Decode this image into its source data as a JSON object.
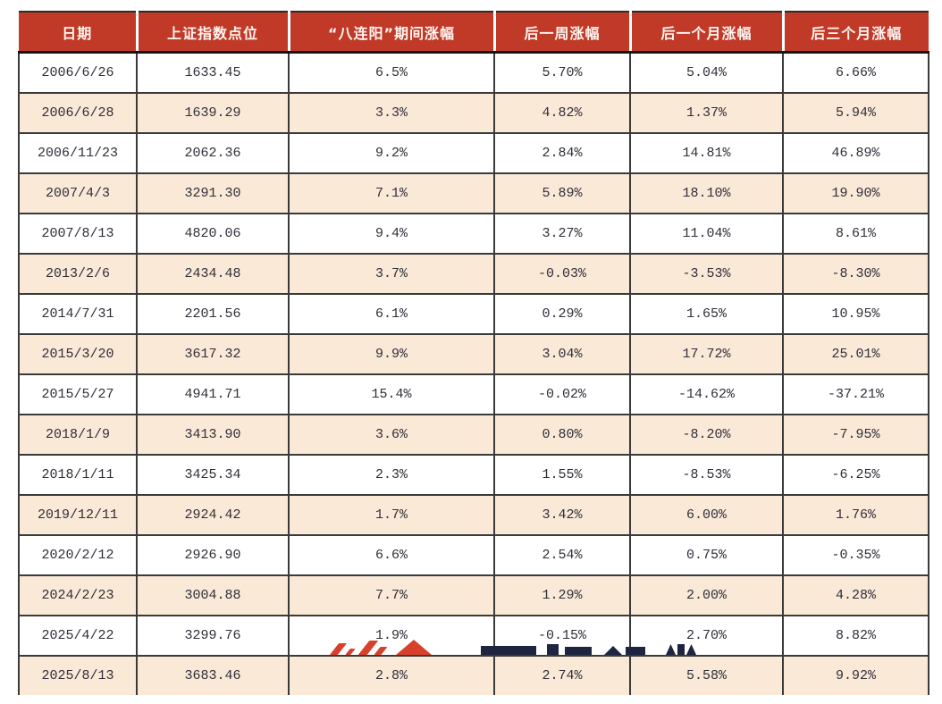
{
  "colors": {
    "header_bg": "#C13A28",
    "header_text": "#FFF6F2",
    "row_alt_bg": "#FBE9D8",
    "row_bg": "#FFFFFF",
    "grid": "#3A3A3A",
    "cell_text": "#2E2E38",
    "watermark_red": "#D8402C",
    "watermark_navy": "#1E2540"
  },
  "table": {
    "columns": [
      "日期",
      "上证指数点位",
      "“八连阳”期间涨幅",
      "后一周涨幅",
      "后一个月涨幅",
      "后三个月涨幅"
    ],
    "rows": [
      [
        "2006/6/26",
        "1633.45",
        "6.5%",
        "5.70%",
        "5.04%",
        "6.66%"
      ],
      [
        "2006/6/28",
        "1639.29",
        "3.3%",
        "4.82%",
        "1.37%",
        "5.94%"
      ],
      [
        "2006/11/23",
        "2062.36",
        "9.2%",
        "2.84%",
        "14.81%",
        "46.89%"
      ],
      [
        "2007/4/3",
        "3291.30",
        "7.1%",
        "5.89%",
        "18.10%",
        "19.90%"
      ],
      [
        "2007/8/13",
        "4820.06",
        "9.4%",
        "3.27%",
        "11.04%",
        "8.61%"
      ],
      [
        "2013/2/6",
        "2434.48",
        "3.7%",
        "-0.03%",
        "-3.53%",
        "-8.30%"
      ],
      [
        "2014/7/31",
        "2201.56",
        "6.1%",
        "0.29%",
        "1.65%",
        "10.95%"
      ],
      [
        "2015/3/20",
        "3617.32",
        "9.9%",
        "3.04%",
        "17.72%",
        "25.01%"
      ],
      [
        "2015/5/27",
        "4941.71",
        "15.4%",
        "-0.02%",
        "-14.62%",
        "-37.21%"
      ],
      [
        "2018/1/9",
        "3413.90",
        "3.6%",
        "0.80%",
        "-8.20%",
        "-7.95%"
      ],
      [
        "2018/1/11",
        "3425.34",
        "2.3%",
        "1.55%",
        "-8.53%",
        "-6.25%"
      ],
      [
        "2019/12/11",
        "2924.42",
        "1.7%",
        "3.42%",
        "6.00%",
        "1.76%"
      ],
      [
        "2020/2/12",
        "2926.90",
        "6.6%",
        "2.54%",
        "0.75%",
        "-0.35%"
      ],
      [
        "2024/2/23",
        "3004.88",
        "7.7%",
        "1.29%",
        "2.00%",
        "4.28%"
      ],
      [
        "2025/4/22",
        "3299.76",
        "1.9%",
        "-0.15%",
        "2.70%",
        "8.82%"
      ],
      [
        "2025/8/13",
        "3683.46",
        "2.8%",
        "2.74%",
        "5.58%",
        "9.92%"
      ]
    ]
  },
  "chart_data": {
    "type": "table",
    "title": "",
    "columns": [
      "日期",
      "上证指数点位",
      "“八连阳”期间涨幅",
      "后一周涨幅",
      "后一个月涨幅",
      "后三个月涨幅"
    ],
    "rows": [
      {
        "date": "2006/6/26",
        "index_level": 1633.45,
        "streak_gain_pct": 6.5,
        "next_week_pct": 5.7,
        "next_month_pct": 5.04,
        "next_3m_pct": 6.66
      },
      {
        "date": "2006/6/28",
        "index_level": 1639.29,
        "streak_gain_pct": 3.3,
        "next_week_pct": 4.82,
        "next_month_pct": 1.37,
        "next_3m_pct": 5.94
      },
      {
        "date": "2006/11/23",
        "index_level": 2062.36,
        "streak_gain_pct": 9.2,
        "next_week_pct": 2.84,
        "next_month_pct": 14.81,
        "next_3m_pct": 46.89
      },
      {
        "date": "2007/4/3",
        "index_level": 3291.3,
        "streak_gain_pct": 7.1,
        "next_week_pct": 5.89,
        "next_month_pct": 18.1,
        "next_3m_pct": 19.9
      },
      {
        "date": "2007/8/13",
        "index_level": 4820.06,
        "streak_gain_pct": 9.4,
        "next_week_pct": 3.27,
        "next_month_pct": 11.04,
        "next_3m_pct": 8.61
      },
      {
        "date": "2013/2/6",
        "index_level": 2434.48,
        "streak_gain_pct": 3.7,
        "next_week_pct": -0.03,
        "next_month_pct": -3.53,
        "next_3m_pct": -8.3
      },
      {
        "date": "2014/7/31",
        "index_level": 2201.56,
        "streak_gain_pct": 6.1,
        "next_week_pct": 0.29,
        "next_month_pct": 1.65,
        "next_3m_pct": 10.95
      },
      {
        "date": "2015/3/20",
        "index_level": 3617.32,
        "streak_gain_pct": 9.9,
        "next_week_pct": 3.04,
        "next_month_pct": 17.72,
        "next_3m_pct": 25.01
      },
      {
        "date": "2015/5/27",
        "index_level": 4941.71,
        "streak_gain_pct": 15.4,
        "next_week_pct": -0.02,
        "next_month_pct": -14.62,
        "next_3m_pct": -37.21
      },
      {
        "date": "2018/1/9",
        "index_level": 3413.9,
        "streak_gain_pct": 3.6,
        "next_week_pct": 0.8,
        "next_month_pct": -8.2,
        "next_3m_pct": -7.95
      },
      {
        "date": "2018/1/11",
        "index_level": 3425.34,
        "streak_gain_pct": 2.3,
        "next_week_pct": 1.55,
        "next_month_pct": -8.53,
        "next_3m_pct": -6.25
      },
      {
        "date": "2019/12/11",
        "index_level": 2924.42,
        "streak_gain_pct": 1.7,
        "next_week_pct": 3.42,
        "next_month_pct": 6.0,
        "next_3m_pct": 1.76
      },
      {
        "date": "2020/2/12",
        "index_level": 2926.9,
        "streak_gain_pct": 6.6,
        "next_week_pct": 2.54,
        "next_month_pct": 0.75,
        "next_3m_pct": -0.35
      },
      {
        "date": "2024/2/23",
        "index_level": 3004.88,
        "streak_gain_pct": 7.7,
        "next_week_pct": 1.29,
        "next_month_pct": 2.0,
        "next_3m_pct": 4.28
      },
      {
        "date": "2025/4/22",
        "index_level": 3299.76,
        "streak_gain_pct": 1.9,
        "next_week_pct": -0.15,
        "next_month_pct": 2.7,
        "next_3m_pct": 8.82
      },
      {
        "date": "2025/8/13",
        "index_level": 3683.46,
        "streak_gain_pct": 2.8,
        "next_week_pct": 2.74,
        "next_month_pct": 5.58,
        "next_3m_pct": 9.92
      }
    ],
    "layout": {
      "header_style": "red background, white bold text",
      "row_striping": "odd rows white, even rows light peach",
      "grid": true
    }
  }
}
